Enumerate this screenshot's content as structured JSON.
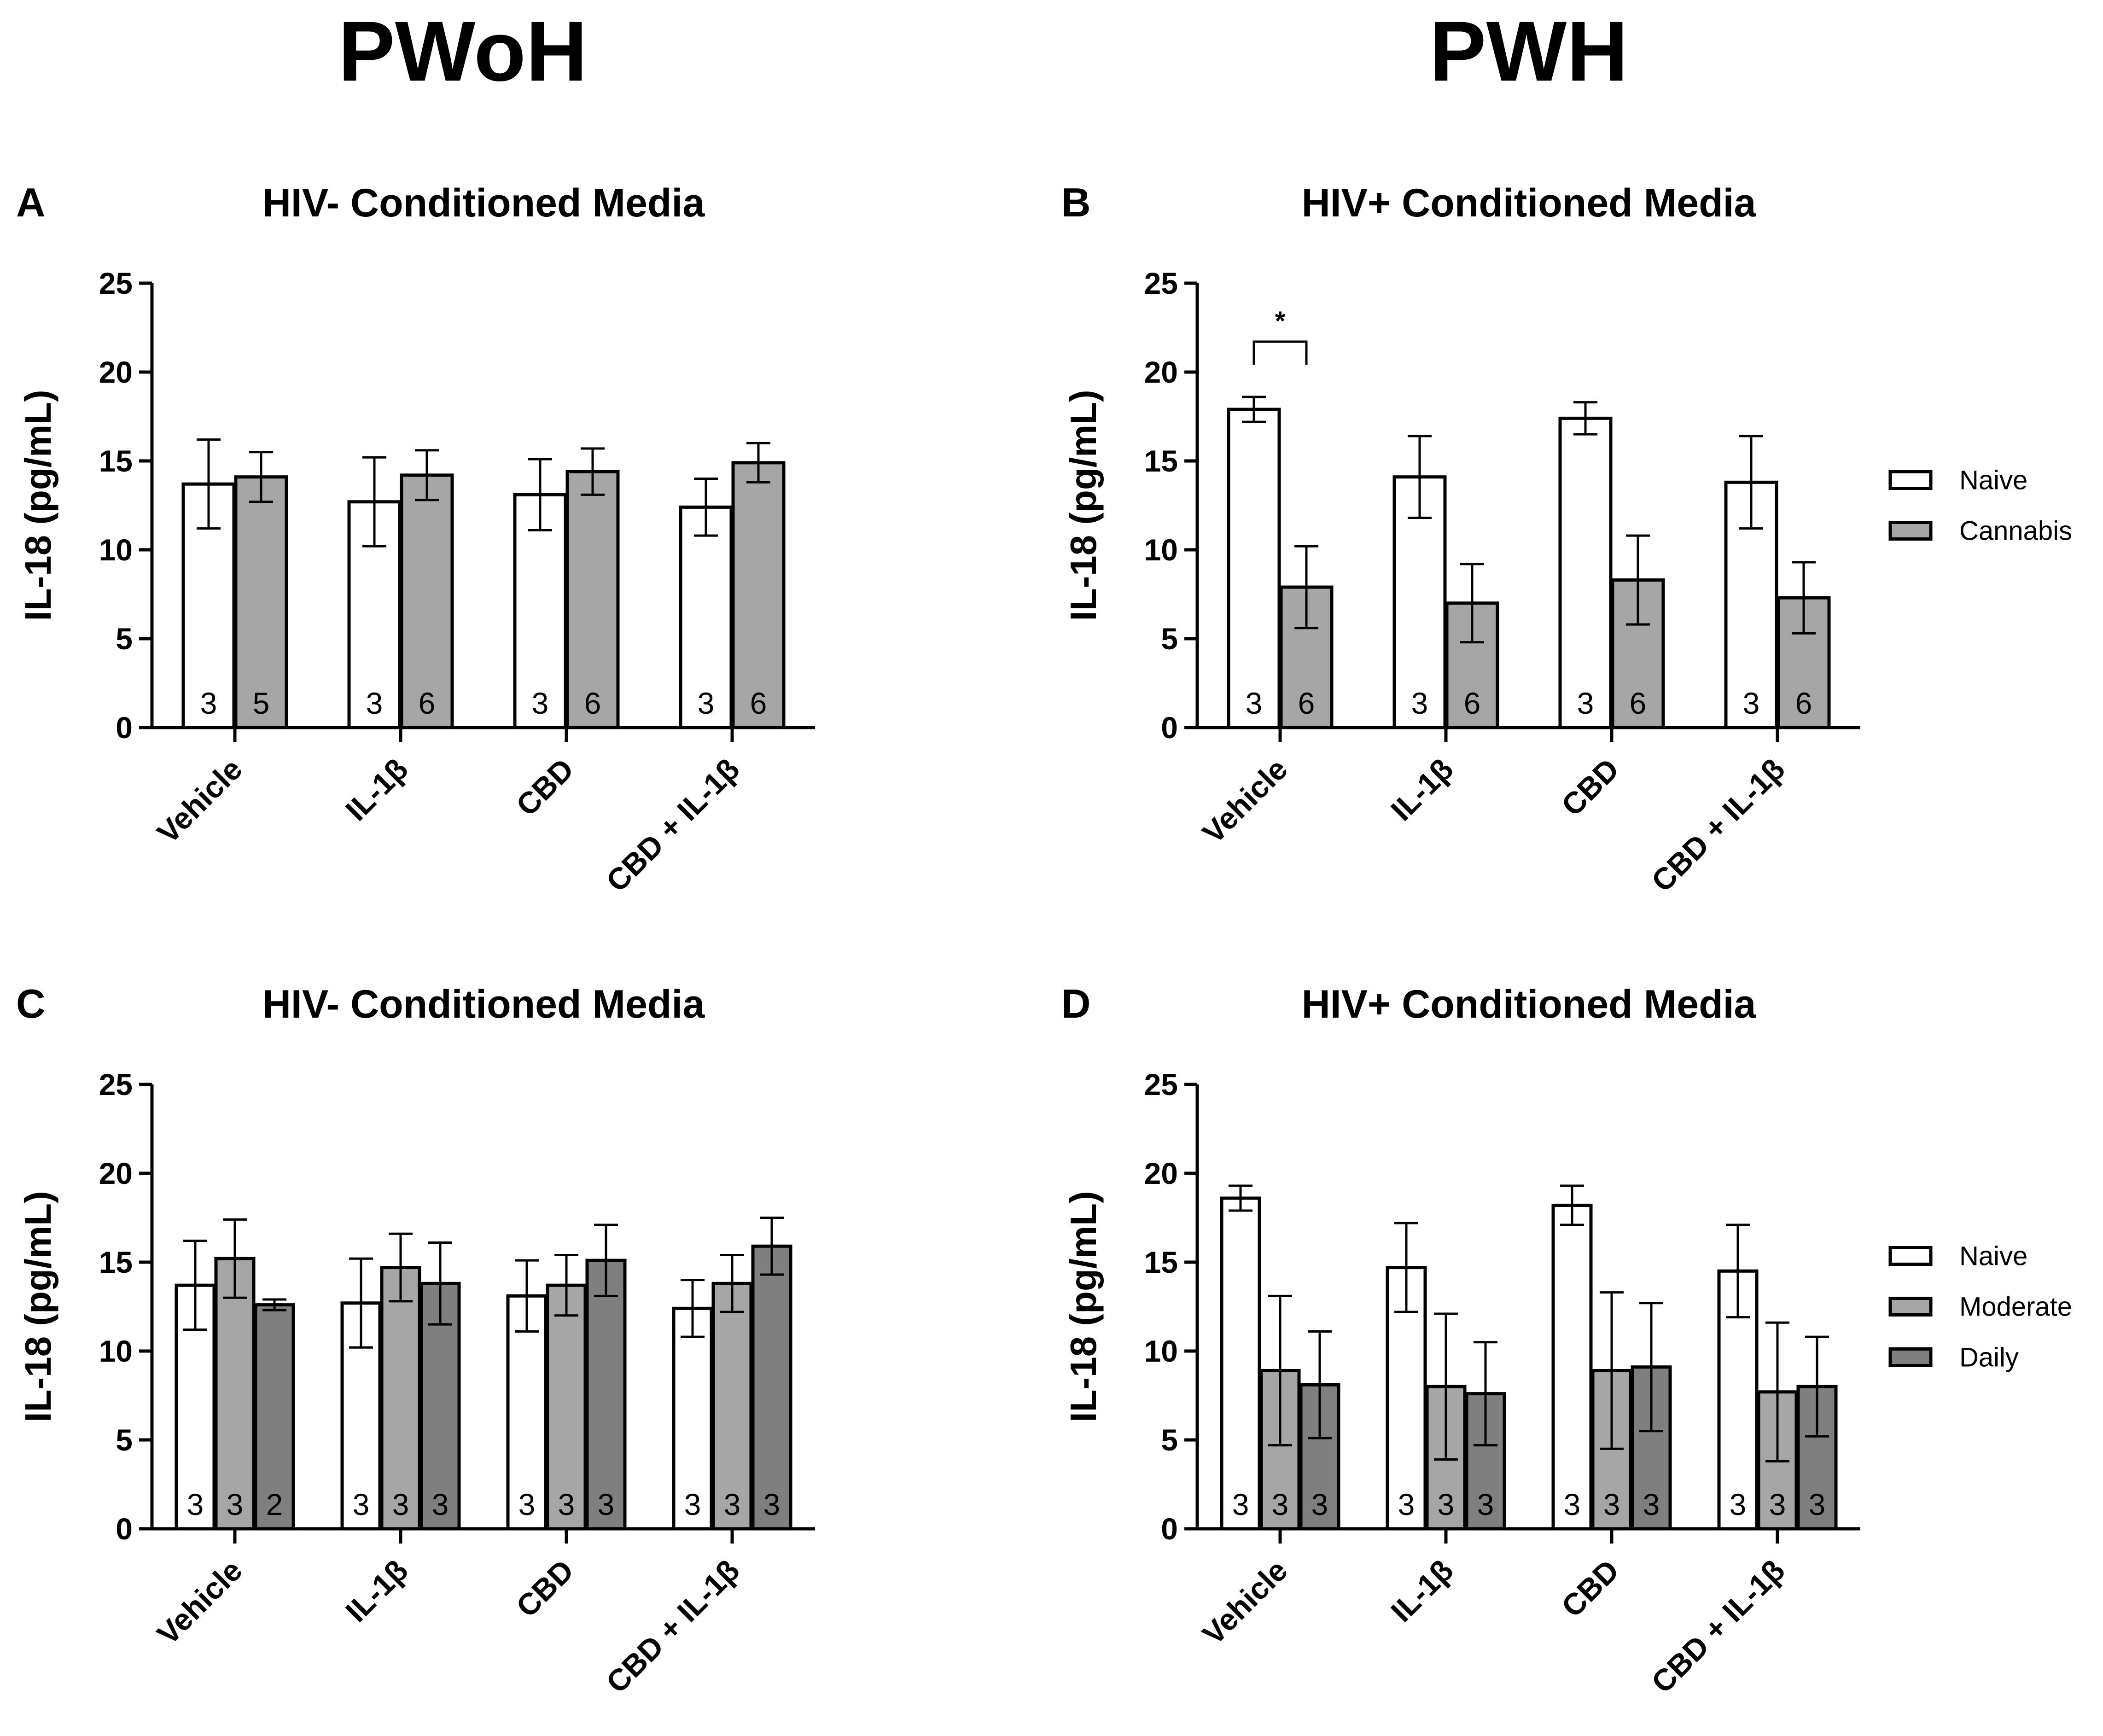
{
  "figure": {
    "column_titles": [
      "PWoH",
      "PWH"
    ]
  },
  "chart_data": [
    {
      "panel": "A",
      "type": "bar",
      "title": "HIV- Conditioned Media",
      "ylabel": "IL-18 (pg/mL)",
      "ylim": [
        0,
        25
      ],
      "yticks": [
        0,
        5,
        10,
        15,
        20,
        25
      ],
      "categories": [
        "Vehicle",
        "IL-1β",
        "CBD",
        "CBD + IL-1β"
      ],
      "series": [
        {
          "values": [
            13.7,
            12.7,
            13.1,
            12.4
          ],
          "errors": [
            2.5,
            2.5,
            2.0,
            1.6
          ],
          "n": [
            "3",
            "3",
            "3",
            "3"
          ],
          "color": "#ffffff"
        },
        {
          "values": [
            14.1,
            14.2,
            14.4,
            14.9
          ],
          "errors": [
            1.4,
            1.4,
            1.3,
            1.1
          ],
          "n": [
            "5",
            "6",
            "6",
            "6"
          ],
          "color": "#a6a6a6"
        }
      ],
      "legend": []
    },
    {
      "panel": "B",
      "type": "bar",
      "title": "HIV+ Conditioned Media",
      "ylabel": "IL-18 (pg/mL)",
      "ylim": [
        0,
        25
      ],
      "yticks": [
        0,
        5,
        10,
        15,
        20,
        25
      ],
      "categories": [
        "Vehicle",
        "IL-1β",
        "CBD",
        "CBD + IL-1β"
      ],
      "series": [
        {
          "name": "Naive",
          "values": [
            17.9,
            14.1,
            17.4,
            13.8
          ],
          "errors": [
            0.7,
            2.3,
            0.9,
            2.6
          ],
          "n": [
            "3",
            "3",
            "3",
            "3"
          ],
          "color": "#ffffff"
        },
        {
          "name": "Cannabis",
          "values": [
            7.9,
            7.0,
            8.3,
            7.3
          ],
          "errors": [
            2.3,
            2.2,
            2.5,
            2.0
          ],
          "n": [
            "6",
            "6",
            "6",
            "6"
          ],
          "color": "#a6a6a6"
        }
      ],
      "significance": [
        {
          "category": "Vehicle",
          "label": "*"
        }
      ],
      "legend": [
        {
          "label": "Naive",
          "color": "#ffffff"
        },
        {
          "label": "Cannabis",
          "color": "#a6a6a6"
        }
      ],
      "legend_position": "right"
    },
    {
      "panel": "C",
      "type": "bar",
      "title": "HIV- Conditioned Media",
      "ylabel": "IL-18 (pg/mL)",
      "ylim": [
        0,
        25
      ],
      "yticks": [
        0,
        5,
        10,
        15,
        20,
        25
      ],
      "categories": [
        "Vehicle",
        "IL-1β",
        "CBD",
        "CBD + IL-1β"
      ],
      "series": [
        {
          "values": [
            13.7,
            12.7,
            13.1,
            12.4
          ],
          "errors": [
            2.5,
            2.5,
            2.0,
            1.6
          ],
          "n": [
            "3",
            "3",
            "3",
            "3"
          ],
          "color": "#ffffff"
        },
        {
          "values": [
            15.2,
            14.7,
            13.7,
            13.8
          ],
          "errors": [
            2.2,
            1.9,
            1.7,
            1.6
          ],
          "n": [
            "3",
            "3",
            "3",
            "3"
          ],
          "color": "#a6a6a6"
        },
        {
          "values": [
            12.6,
            13.8,
            15.1,
            15.9
          ],
          "errors": [
            0.3,
            2.3,
            2.0,
            1.6
          ],
          "n": [
            "2",
            "3",
            "3",
            "3"
          ],
          "color": "#7f7f7f"
        }
      ],
      "legend": []
    },
    {
      "panel": "D",
      "type": "bar",
      "title": "HIV+ Conditioned Media",
      "ylabel": "IL-18 (pg/mL)",
      "ylim": [
        0,
        25
      ],
      "yticks": [
        0,
        5,
        10,
        15,
        20,
        25
      ],
      "categories": [
        "Vehicle",
        "IL-1β",
        "CBD",
        "CBD + IL-1β"
      ],
      "series": [
        {
          "name": "Naive",
          "values": [
            18.6,
            14.7,
            18.2,
            14.5
          ],
          "errors": [
            0.7,
            2.5,
            1.1,
            2.6
          ],
          "n": [
            "3",
            "3",
            "3",
            "3"
          ],
          "color": "#ffffff"
        },
        {
          "name": "Moderate",
          "values": [
            8.9,
            8.0,
            8.9,
            7.7
          ],
          "errors": [
            4.2,
            4.1,
            4.4,
            3.9
          ],
          "n": [
            "3",
            "3",
            "3",
            "3"
          ],
          "color": "#a6a6a6"
        },
        {
          "name": "Daily",
          "values": [
            8.1,
            7.6,
            9.1,
            8.0
          ],
          "errors": [
            3.0,
            2.9,
            3.6,
            2.8
          ],
          "n": [
            "3",
            "3",
            "3",
            "3"
          ],
          "color": "#7f7f7f"
        }
      ],
      "legend": [
        {
          "label": "Naive",
          "color": "#ffffff"
        },
        {
          "label": "Moderate",
          "color": "#a6a6a6"
        },
        {
          "label": "Daily",
          "color": "#7f7f7f"
        }
      ],
      "legend_position": "right"
    }
  ]
}
